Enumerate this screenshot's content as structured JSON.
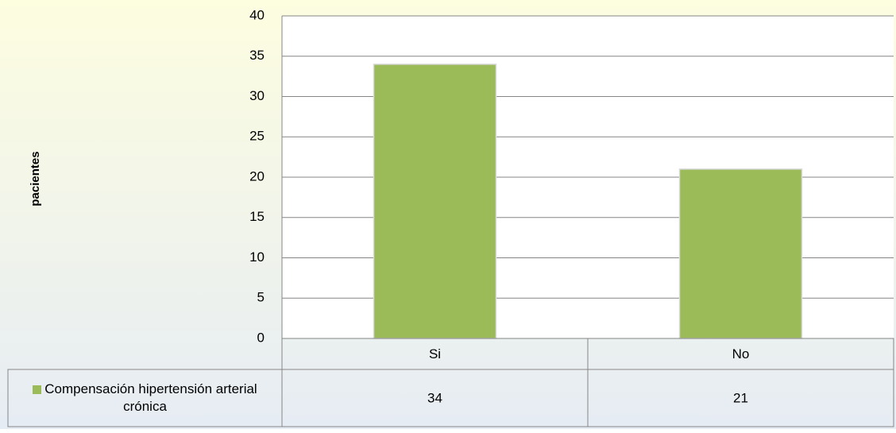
{
  "chart_data": {
    "type": "bar",
    "ylabel": "pacientes",
    "categories": [
      "Si",
      "No"
    ],
    "series": [
      {
        "name": "Compensación hipertensión arterial crónica",
        "color": "#9bbb59",
        "values": [
          34,
          21
        ]
      }
    ],
    "ylim": [
      0,
      40
    ],
    "yticks": [
      0,
      5,
      10,
      15,
      20,
      25,
      30,
      35,
      40
    ],
    "grid": true,
    "data_table": true
  }
}
